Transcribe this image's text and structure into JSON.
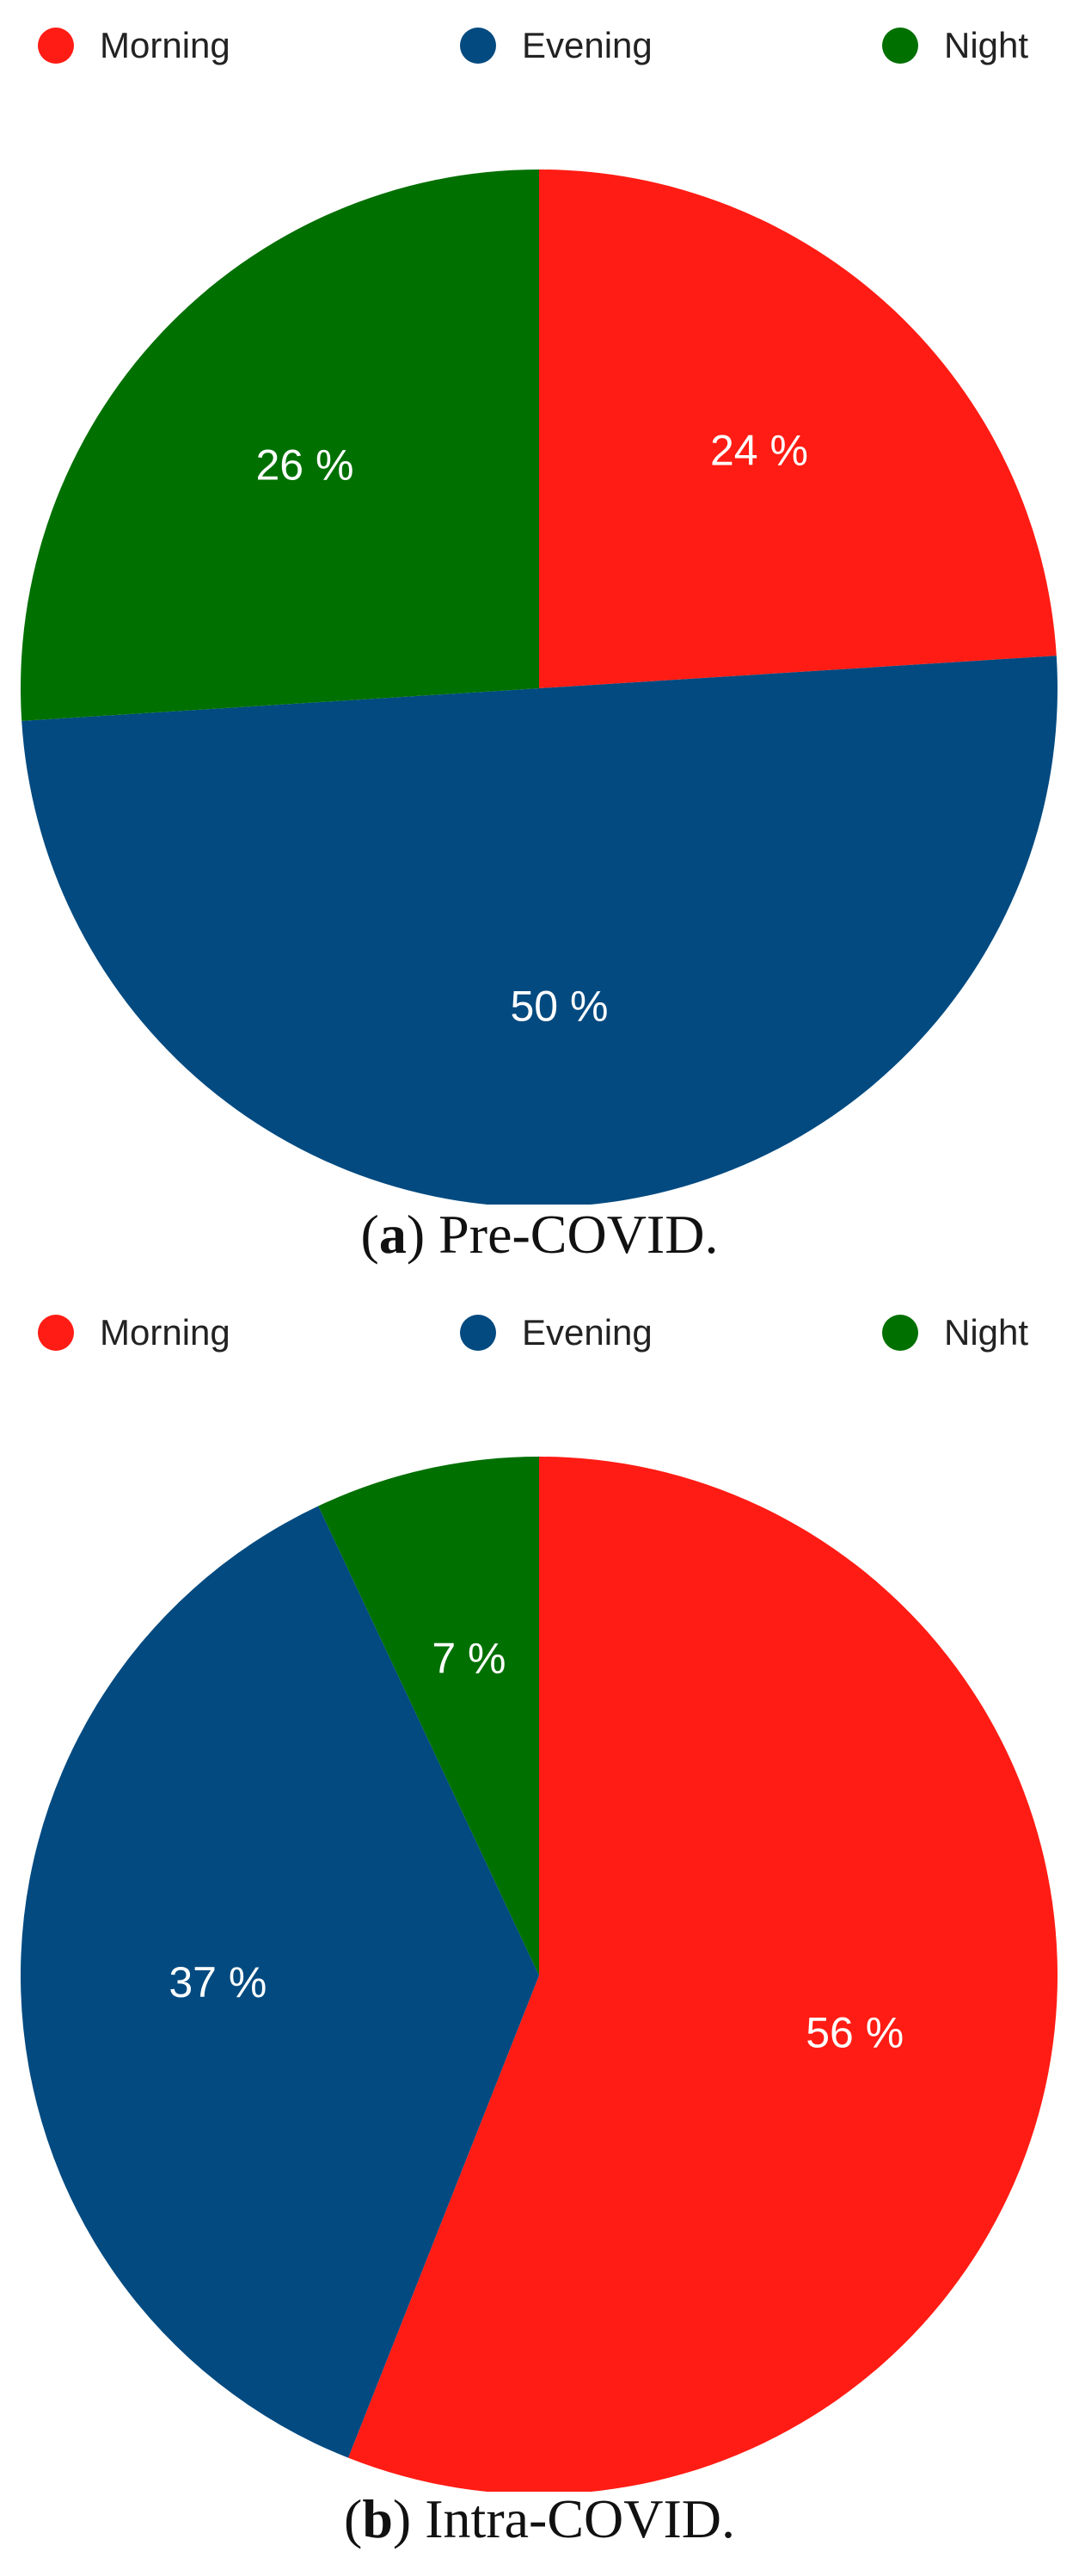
{
  "chart_data": [
    {
      "type": "pie",
      "legend_placement": "top",
      "categories": [
        "Morning",
        "Evening",
        "Night"
      ],
      "values": [
        24,
        50,
        26
      ],
      "value_labels": [
        "24 %",
        "50 %",
        "26 %"
      ],
      "colors": [
        "#ff1c14",
        "#024a80",
        "#007000"
      ],
      "caption": {
        "letter": "a",
        "text": "Pre-COVID."
      }
    },
    {
      "type": "pie",
      "legend_placement": "top",
      "categories": [
        "Morning",
        "Evening",
        "Night"
      ],
      "values": [
        56,
        37,
        7
      ],
      "value_labels": [
        "56 %",
        "37 %",
        "7 %"
      ],
      "colors": [
        "#ff1c14",
        "#024a80",
        "#007000"
      ],
      "caption": {
        "letter": "b",
        "text": "Intra-COVID."
      }
    }
  ]
}
